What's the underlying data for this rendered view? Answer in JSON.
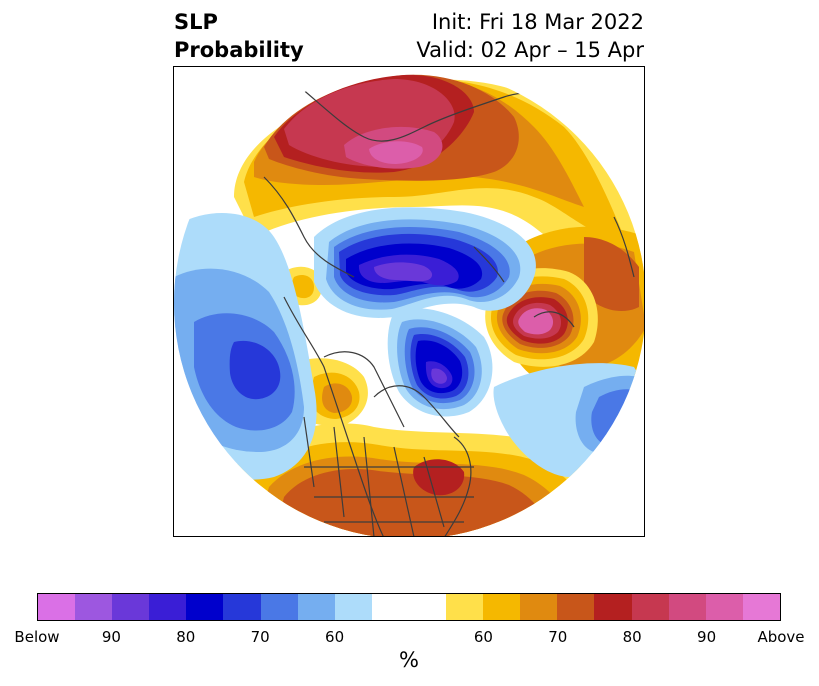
{
  "title": {
    "left_line1": "SLP",
    "left_line2": "Probability",
    "right_line1": "Init: Fri 18 Mar 2022",
    "right_line2": "Valid: 02 Apr – 15 Apr"
  },
  "colorbar": {
    "colors": [
      "#da70e6",
      "#9d57e0",
      "#6a38d9",
      "#3a1ed6",
      "#0000cc",
      "#2638d9",
      "#4a78e6",
      "#75aef0",
      "#addcfa",
      "#ffffff",
      "#ffffff",
      "#ffe04a",
      "#f5b800",
      "#e08a10",
      "#c8561a",
      "#b42020",
      "#c63850",
      "#d24a80",
      "#dc5eaa",
      "#e678d6"
    ],
    "tick_labels": [
      "Below",
      "90",
      "80",
      "70",
      "60",
      "60",
      "70",
      "80",
      "90",
      "Above"
    ],
    "unit": "%"
  },
  "map": {
    "description_colors": {
      "below_strong": "#3a1ed6",
      "below_mid": "#4a78e6",
      "below_light": "#addcfa",
      "above_light": "#ffe04a",
      "above_mid": "#e08a10",
      "above_strong": "#b42020",
      "above_max": "#dc5eaa"
    }
  }
}
